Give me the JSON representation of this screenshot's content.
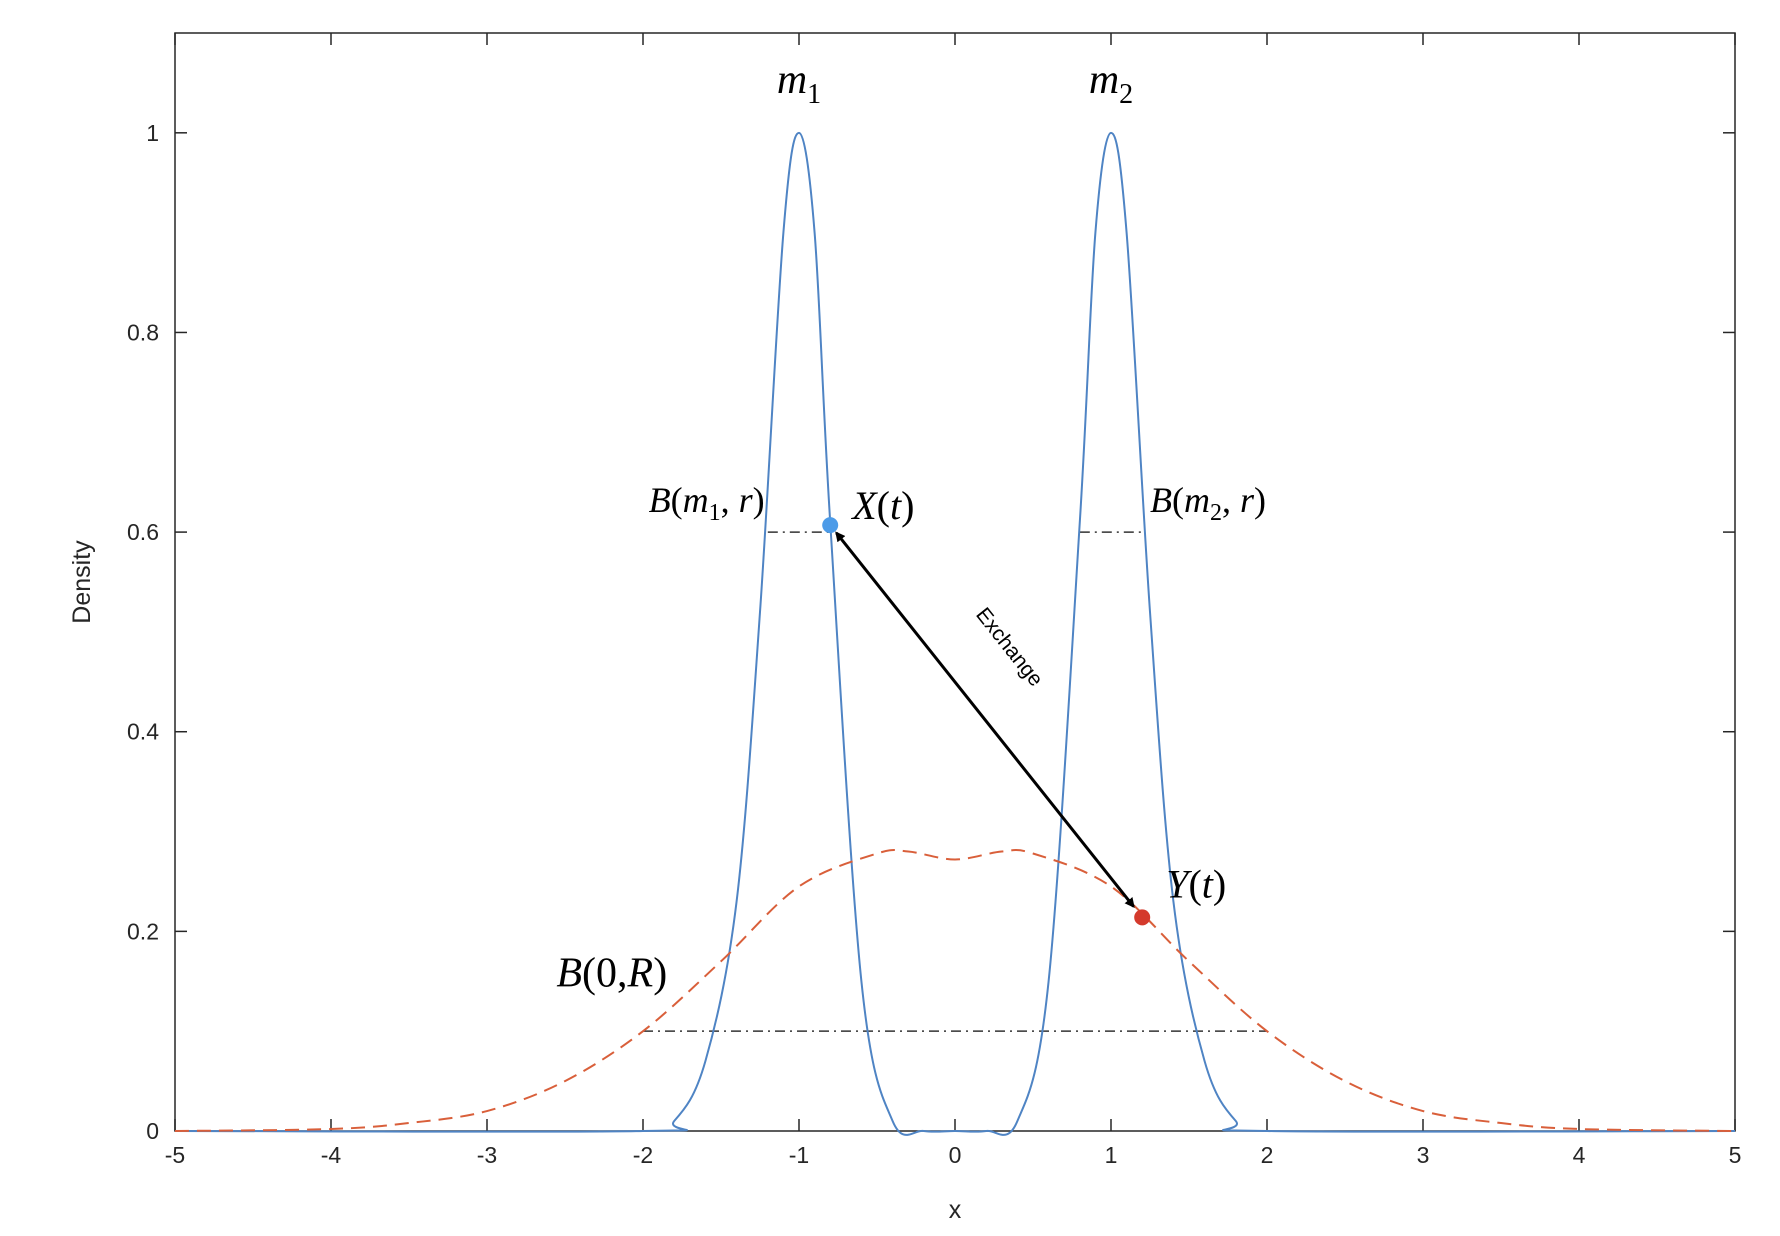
{
  "chart_data": {
    "type": "line",
    "xlabel": "x",
    "ylabel": "Density",
    "xlim": [
      -5,
      5
    ],
    "ylim": [
      0,
      1.1
    ],
    "x_ticks": [
      "-5",
      "-4",
      "-3",
      "-2",
      "-1",
      "0",
      "1",
      "2",
      "3",
      "4",
      "5"
    ],
    "y_ticks": [
      "0",
      "0.2",
      "0.4",
      "0.6",
      "0.8",
      "1"
    ],
    "grid": false,
    "box": true,
    "series": [
      {
        "color": "#4F84C4",
        "style": "solid",
        "description_points": "two narrow peaks",
        "points": [
          [
            -5,
            0
          ],
          [
            -2.0,
            0
          ],
          [
            -1.8,
            0.01
          ],
          [
            -1.6,
            0.07
          ],
          [
            -1.4,
            0.23
          ],
          [
            -1.25,
            0.52
          ],
          [
            -1.1,
            0.9
          ],
          [
            -1.0,
            1.0
          ],
          [
            -0.9,
            0.9
          ],
          [
            -0.8,
            0.61
          ],
          [
            -0.6,
            0.15
          ],
          [
            -0.4,
            0.01
          ],
          [
            -0.2,
            0
          ],
          [
            0,
            0
          ],
          [
            0.2,
            0
          ],
          [
            0.4,
            0.01
          ],
          [
            0.6,
            0.15
          ],
          [
            0.8,
            0.61
          ],
          [
            0.9,
            0.9
          ],
          [
            1.0,
            1.0
          ],
          [
            1.1,
            0.9
          ],
          [
            1.25,
            0.52
          ],
          [
            1.4,
            0.23
          ],
          [
            1.6,
            0.07
          ],
          [
            1.8,
            0.01
          ],
          [
            2.0,
            0
          ],
          [
            5,
            0
          ]
        ]
      },
      {
        "color": "#D95F3A",
        "style": "dashed",
        "points": [
          [
            -5,
            0
          ],
          [
            -4,
            0.002
          ],
          [
            -3.5,
            0.008
          ],
          [
            -3,
            0.02
          ],
          [
            -2.5,
            0.05
          ],
          [
            -2,
            0.1
          ],
          [
            -1.5,
            0.17
          ],
          [
            -1.0,
            0.245
          ],
          [
            -0.5,
            0.278
          ],
          [
            -0.3,
            0.28
          ],
          [
            0,
            0.272
          ],
          [
            0.3,
            0.28
          ],
          [
            0.5,
            0.278
          ],
          [
            1.0,
            0.245
          ],
          [
            1.5,
            0.17
          ],
          [
            2,
            0.1
          ],
          [
            2.5,
            0.05
          ],
          [
            3,
            0.02
          ],
          [
            3.5,
            0.008
          ],
          [
            4,
            0.002
          ],
          [
            5,
            0
          ]
        ]
      }
    ],
    "reference_segments": [
      {
        "x": [
          -1.2,
          -0.8
        ],
        "y": 0.6
      },
      {
        "x": [
          0.8,
          1.2
        ],
        "y": 0.6
      },
      {
        "x": [
          -2,
          2
        ],
        "y": 0.1
      }
    ],
    "markers": [
      {
        "label": "X(t)",
        "x": -0.8,
        "y": 0.607,
        "color": "#4C9BE8"
      },
      {
        "label": "Y(t)",
        "x": 1.2,
        "y": 0.214,
        "color": "#D43A2C"
      }
    ],
    "arrow": {
      "from": [
        -0.8,
        0.607
      ],
      "to": [
        1.2,
        0.214
      ],
      "label": "Exchange",
      "double_headed": true
    },
    "annotations": [
      {
        "id": "m1",
        "text": "m",
        "sub": "1",
        "x": -1.0,
        "y": 1.04
      },
      {
        "id": "m2",
        "text": "m",
        "sub": "2",
        "x": 1.0,
        "y": 1.04
      },
      {
        "id": "bm1",
        "pre": "B(",
        "var": "m",
        "sub": "1",
        "post": ", r)",
        "x": -1.4,
        "y": 0.62
      },
      {
        "id": "bm2",
        "pre": "B(",
        "var": "m",
        "sub": "2",
        "post": ", r)",
        "x": 1.25,
        "y": 0.62
      },
      {
        "id": "b0",
        "text": "B(0,R)",
        "x": -2.2,
        "y": 0.145
      }
    ]
  }
}
